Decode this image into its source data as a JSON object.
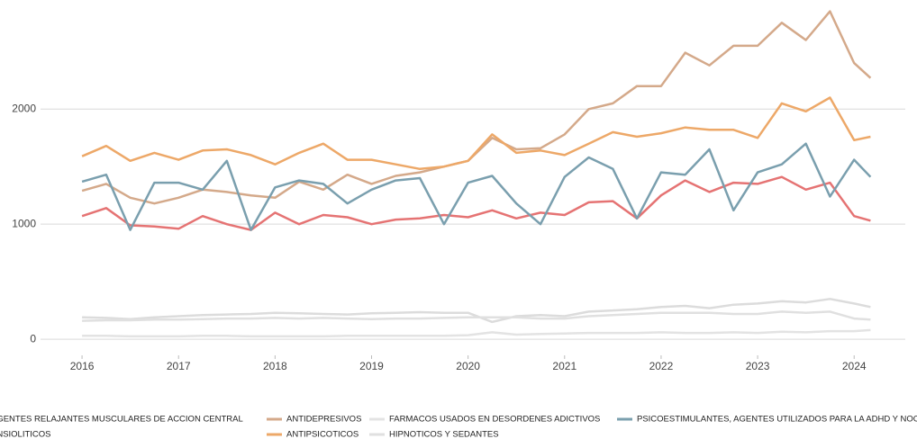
{
  "chart_data": {
    "type": "line",
    "x": [
      2016,
      2016.25,
      2016.5,
      2016.75,
      2017,
      2017.25,
      2017.5,
      2017.75,
      2018,
      2018.25,
      2018.5,
      2018.75,
      2019,
      2019.25,
      2019.5,
      2019.75,
      2020,
      2020.25,
      2020.5,
      2020.75,
      2021,
      2021.25,
      2021.5,
      2021.75,
      2022,
      2022.25,
      2022.5,
      2022.75,
      2023,
      2023.25,
      2023.5,
      2023.75,
      2024,
      2024.17
    ],
    "series": [
      {
        "name": "AGENTES RELAJANTES MUSCULARES DE ACCION CENTRAL",
        "color": "#e57373",
        "values": [
          1070,
          1140,
          990,
          980,
          960,
          1070,
          1000,
          950,
          1100,
          1000,
          1080,
          1060,
          1000,
          1040,
          1050,
          1080,
          1060,
          1120,
          1050,
          1100,
          1080,
          1190,
          1200,
          1050,
          1250,
          1380,
          1280,
          1360,
          1350,
          1410,
          1300,
          1360,
          1070,
          1030
        ]
      },
      {
        "name": "ANSIOLITICOS",
        "color": "#dcdcdc",
        "values": [
          190,
          185,
          175,
          190,
          200,
          210,
          215,
          220,
          230,
          225,
          220,
          215,
          225,
          230,
          235,
          230,
          230,
          150,
          200,
          210,
          200,
          240,
          250,
          260,
          280,
          290,
          270,
          300,
          310,
          330,
          320,
          350,
          310,
          280
        ]
      },
      {
        "name": "ANTIDEPRESIVOS",
        "color": "#d4a98a",
        "values": [
          1290,
          1350,
          1230,
          1180,
          1230,
          1300,
          1280,
          1250,
          1230,
          1370,
          1300,
          1430,
          1350,
          1420,
          1450,
          1500,
          1550,
          1750,
          1650,
          1660,
          1780,
          2000,
          2050,
          2200,
          2200,
          2490,
          2380,
          2550,
          2550,
          2750,
          2600,
          2850,
          2400,
          2270
        ]
      },
      {
        "name": "ANTIPSICOTICOS",
        "color": "#eda868",
        "values": [
          1590,
          1680,
          1550,
          1620,
          1560,
          1640,
          1650,
          1600,
          1520,
          1620,
          1700,
          1560,
          1560,
          1520,
          1480,
          1500,
          1550,
          1780,
          1620,
          1640,
          1600,
          1700,
          1800,
          1760,
          1790,
          1840,
          1820,
          1820,
          1750,
          2050,
          1980,
          2100,
          1730,
          1760
        ]
      },
      {
        "name": "FARMACOS USADOS EN DESORDENES ADICTIVOS",
        "color": "#e3e3e3",
        "values": [
          30,
          30,
          25,
          25,
          25,
          30,
          30,
          25,
          25,
          25,
          25,
          30,
          30,
          30,
          30,
          30,
          35,
          60,
          40,
          45,
          50,
          55,
          55,
          55,
          60,
          55,
          55,
          60,
          55,
          65,
          60,
          70,
          70,
          80
        ]
      },
      {
        "name": "HIPNOTICOS Y SEDANTES",
        "color": "#e0e0e0",
        "values": [
          160,
          165,
          165,
          170,
          170,
          175,
          180,
          180,
          185,
          180,
          185,
          180,
          175,
          180,
          180,
          185,
          190,
          190,
          190,
          180,
          180,
          200,
          210,
          220,
          230,
          230,
          230,
          220,
          220,
          240,
          230,
          240,
          180,
          170
        ]
      },
      {
        "name": "PSICOESTIMULANTES, AGENTES UTILIZADOS PARA LA ADHD Y NOOTROPICOS",
        "color": "#7a9fae",
        "values": [
          1370,
          1430,
          950,
          1360,
          1360,
          1300,
          1550,
          950,
          1320,
          1380,
          1350,
          1180,
          1300,
          1380,
          1400,
          1000,
          1360,
          1420,
          1180,
          1000,
          1410,
          1580,
          1480,
          1050,
          1450,
          1430,
          1650,
          1120,
          1450,
          1520,
          1700,
          1240,
          1560,
          1410
        ]
      }
    ],
    "xlim": [
      2015.57,
      2024.53
    ],
    "xticks": [
      2016,
      2017,
      2018,
      2019,
      2020,
      2021,
      2022,
      2023,
      2024
    ],
    "ylim": [
      -140,
      2870
    ],
    "yticks": [
      0,
      1000,
      2000
    ],
    "grid": true,
    "legend": "bottom"
  }
}
